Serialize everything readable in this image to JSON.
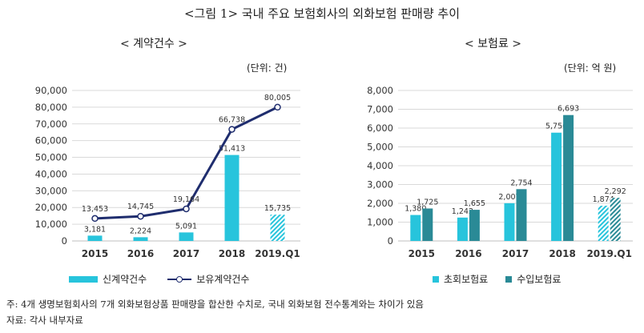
{
  "title": "<그림 1> 국내 주요 보험회사의 외화보험 판매량 추이",
  "chart_data": [
    {
      "type": "bar",
      "subtitle": "< 계약건수 >",
      "unit": "(단위: 건)",
      "categories": [
        "2015",
        "2016",
        "2017",
        "2018",
        "2019.Q1"
      ],
      "ylim": [
        0,
        90000
      ],
      "yticks": [
        "0",
        "10,000",
        "20,000",
        "30,000",
        "40,000",
        "50,000",
        "60,000",
        "70,000",
        "80,000",
        "90,000"
      ],
      "series": [
        {
          "name": "신계약건수",
          "kind": "bar",
          "values": [
            3181,
            2224,
            5091,
            51413,
            15735
          ],
          "labels": [
            "3,181",
            "2,224",
            "5,091",
            "51,413",
            "15,735"
          ],
          "color": "#27c4dc"
        },
        {
          "name": "보유계약건수",
          "kind": "line",
          "values": [
            13453,
            14745,
            19164,
            66738,
            80005
          ],
          "labels": [
            "13,453",
            "14,745",
            "19,164",
            "66,738",
            "80,005"
          ],
          "color": "#1f2d6e"
        }
      ]
    },
    {
      "type": "bar",
      "subtitle": "< 보험료 >",
      "unit": "(단위: 억 원)",
      "categories": [
        "2015",
        "2016",
        "2017",
        "2018",
        "2019.Q1"
      ],
      "ylim": [
        0,
        8000
      ],
      "yticks": [
        "0",
        "1,000",
        "2,000",
        "3,000",
        "4,000",
        "5,000",
        "6,000",
        "7,000",
        "8,000"
      ],
      "series": [
        {
          "name": "초회보험료",
          "kind": "bar",
          "values": [
            1380,
            1242,
            2007,
            5756,
            1874
          ],
          "labels": [
            "1,380",
            "1,242",
            "2,007",
            "5,756",
            "1,874"
          ],
          "color": "#27c4dc"
        },
        {
          "name": "수입보험료",
          "kind": "bar",
          "values": [
            1725,
            1655,
            2754,
            6693,
            2292
          ],
          "labels": [
            "1,725",
            "1,655",
            "2,754",
            "6,693",
            "2,292"
          ],
          "color": "#2a8a96"
        }
      ]
    }
  ],
  "notes": {
    "note1": "주: 4개 생명보험회사의 7개 외화보험상품 판매량을 합산한 수치로, 국내 외화보험 전수통계와는 차이가 있음",
    "note2": "자료: 각사 내부자료"
  }
}
